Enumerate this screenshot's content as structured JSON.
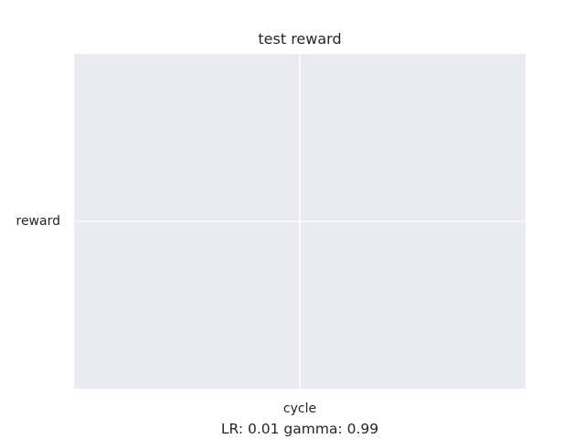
{
  "chart_data": {
    "type": "line",
    "title": "test reward",
    "xlabel": "cycle",
    "ylabel": "reward",
    "caption": "LR: 0.01 gamma: 0.99",
    "series": [],
    "grid": true,
    "colors": {
      "plot_background": "#eaeaf2",
      "grid": "#ffffff",
      "text": "#262626"
    }
  }
}
